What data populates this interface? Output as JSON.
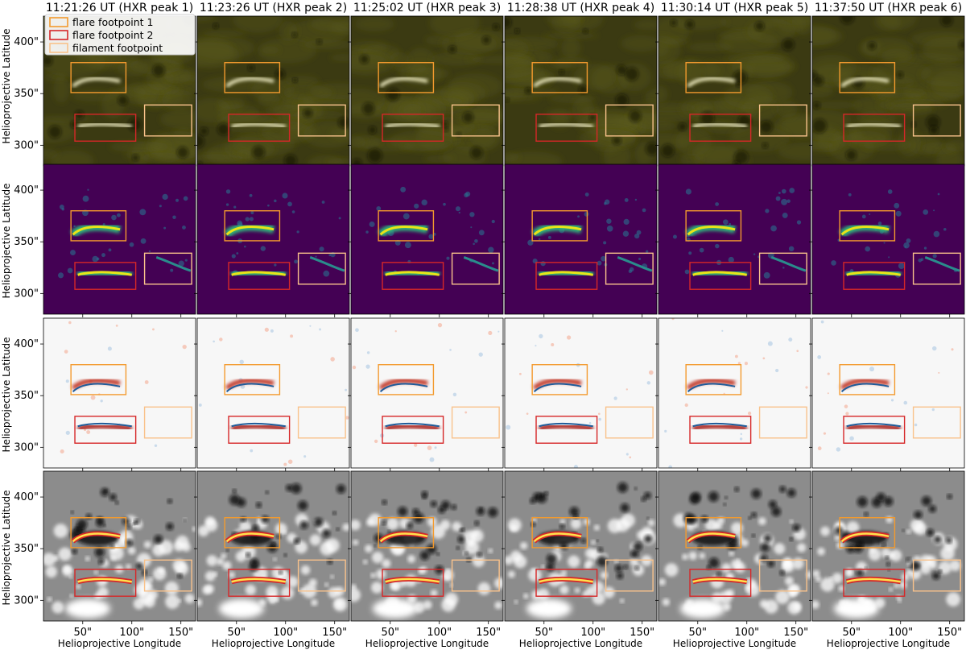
{
  "figure": {
    "column_titles": [
      "11:21:26 UT (HXR peak 1)",
      "11:23:26 UT (HXR peak 2)",
      "11:25:02 UT (HXR peak 3)",
      "11:28:38 UT (HXR peak 4)",
      "11:30:14 UT (HXR peak 5)",
      "11:37:50 UT (HXR peak 6)"
    ],
    "ylabel": "Helioprojective Latitude",
    "xlabel": "Helioprojective Longitude",
    "xlim": [
      10,
      165
    ],
    "ylim": [
      280,
      425
    ],
    "yticks": [
      300,
      350,
      400
    ],
    "ytick_labels": [
      "300\"",
      "350\"",
      "400\""
    ],
    "xticks": [
      50,
      100,
      150
    ],
    "xtick_labels": [
      "50\"",
      "100\"",
      "150\""
    ],
    "rows": [
      "aia-1600",
      "intensity",
      "difference",
      "magnetogram"
    ],
    "row_colors": {
      "aia-1600": "#3b3a12",
      "intensity": "#440154",
      "difference": "#f7f7f7",
      "magnetogram": "#8c8c8c"
    },
    "legend": [
      {
        "label": "flare footpoint 1",
        "color": "#f39a2e"
      },
      {
        "label": "flare footpoint 2",
        "color": "#d62728"
      },
      {
        "label": "filament footpoint",
        "color": "#f9c28b"
      }
    ],
    "boxes": [
      {
        "name": "flare-footpoint-1",
        "color": "#f39a2e",
        "x": [
          38,
          94
        ],
        "y": [
          351,
          380
        ]
      },
      {
        "name": "flare-footpoint-2",
        "color": "#d62728",
        "x": [
          42,
          104
        ],
        "y": [
          304,
          330
        ]
      },
      {
        "name": "filament-footpoint",
        "color": "#f9c28b",
        "x": [
          113,
          161
        ],
        "y": [
          309,
          339
        ]
      }
    ]
  }
}
